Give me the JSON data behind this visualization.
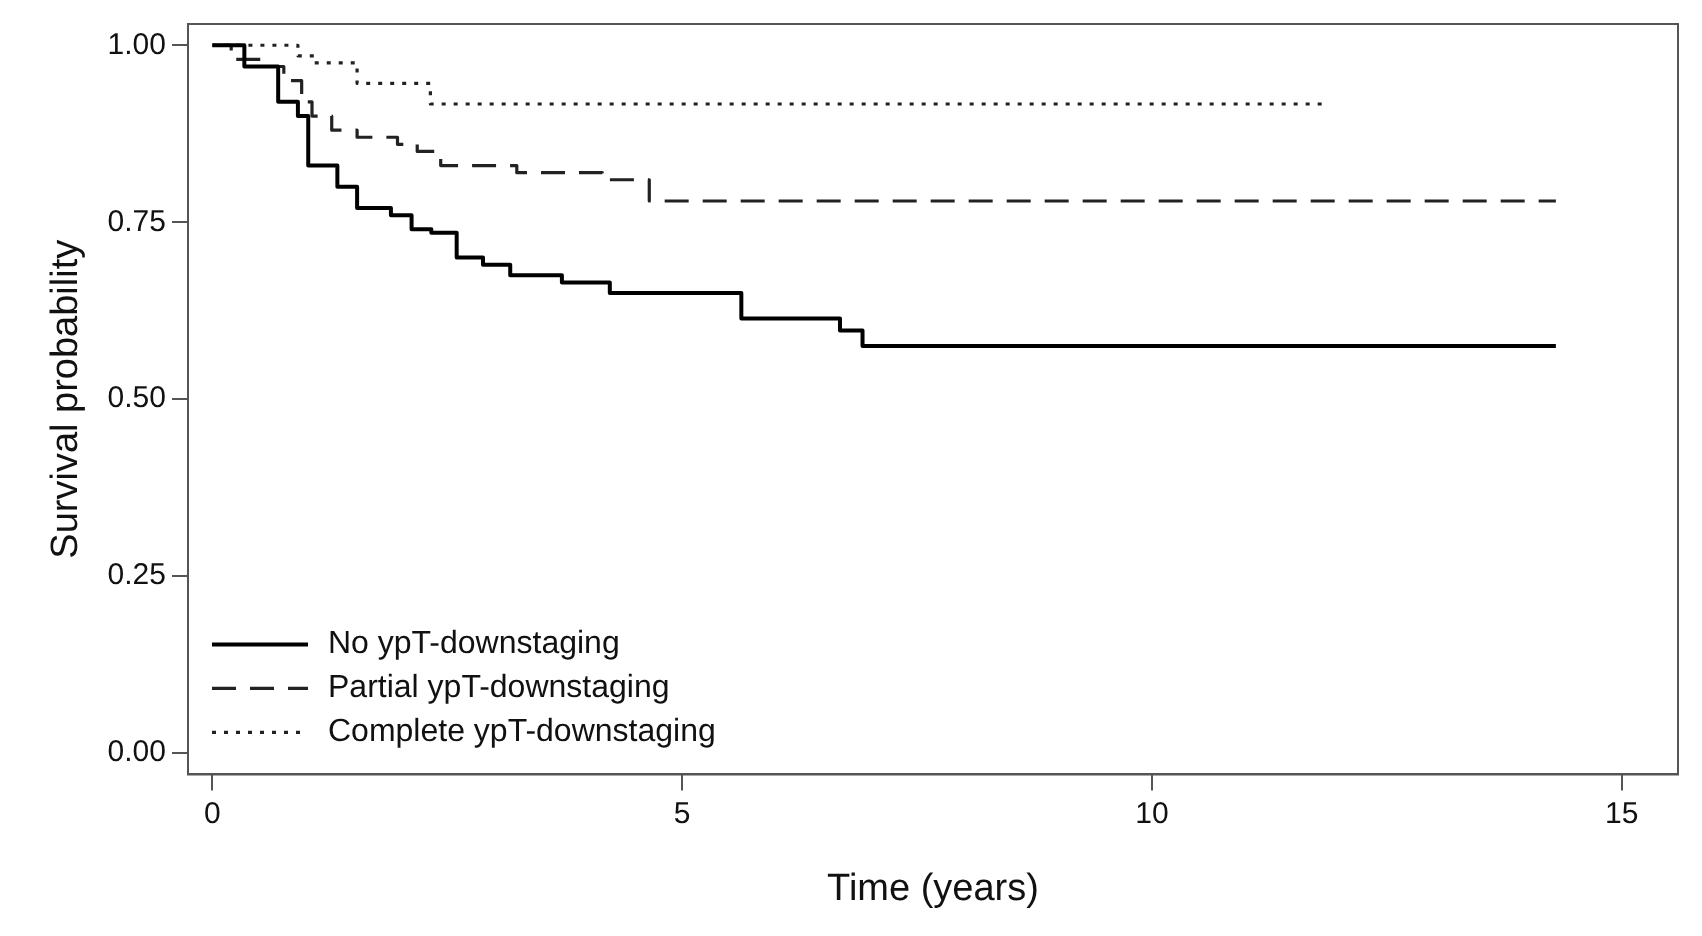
{
  "chart_data": {
    "type": "step",
    "xlabel": "Time (years)",
    "ylabel": "Survival probability",
    "xlim": [
      -0.26,
      15.6
    ],
    "ylim": [
      -0.03,
      1.03
    ],
    "xticks": [
      0,
      5,
      10,
      15
    ],
    "yticks": [
      {
        "value": 0,
        "label": "0.00"
      },
      {
        "value": 0.25,
        "label": "0.25"
      },
      {
        "value": 0.5,
        "label": "0.50"
      },
      {
        "value": 0.75,
        "label": "0.75"
      },
      {
        "value": 1,
        "label": "1.00"
      }
    ],
    "grid": false,
    "legend": "bottom left",
    "marker": "none",
    "series": [
      {
        "name": "No ypT-downstaging",
        "color": "#000000",
        "line_style": "solid",
        "x": [
          0,
          0.34,
          0.7,
          0.91,
          1.02,
          1.33,
          1.54,
          1.9,
          2.12,
          2.33,
          2.6,
          2.88,
          3.17,
          3.72,
          4.23,
          5.63,
          6.68,
          6.92,
          14.3
        ],
        "values": [
          1,
          0.97,
          0.92,
          0.9,
          0.83,
          0.8,
          0.77,
          0.76,
          0.74,
          0.735,
          0.7,
          0.69,
          0.675,
          0.665,
          0.65,
          0.614,
          0.597,
          0.575,
          0.575
        ]
      },
      {
        "name": "Partial ypT-downstaging",
        "color": "#222222",
        "line_style": "dashed",
        "x": [
          0,
          0.2,
          0.55,
          0.76,
          0.95,
          1.06,
          1.27,
          1.54,
          1.97,
          2.18,
          2.43,
          3.24,
          4.15,
          4.65,
          14.3
        ],
        "values": [
          1,
          0.98,
          0.97,
          0.95,
          0.92,
          0.9,
          0.88,
          0.87,
          0.86,
          0.85,
          0.83,
          0.82,
          0.81,
          0.78,
          0.78
        ]
      },
      {
        "name": "Complete ypT-downstaging",
        "color": "#222222",
        "line_style": "dotted",
        "x": [
          0,
          0.91,
          1.08,
          1.54,
          2.32,
          11.87
        ],
        "values": [
          1,
          0.985,
          0.975,
          0.946,
          0.917,
          0.917
        ]
      }
    ]
  }
}
